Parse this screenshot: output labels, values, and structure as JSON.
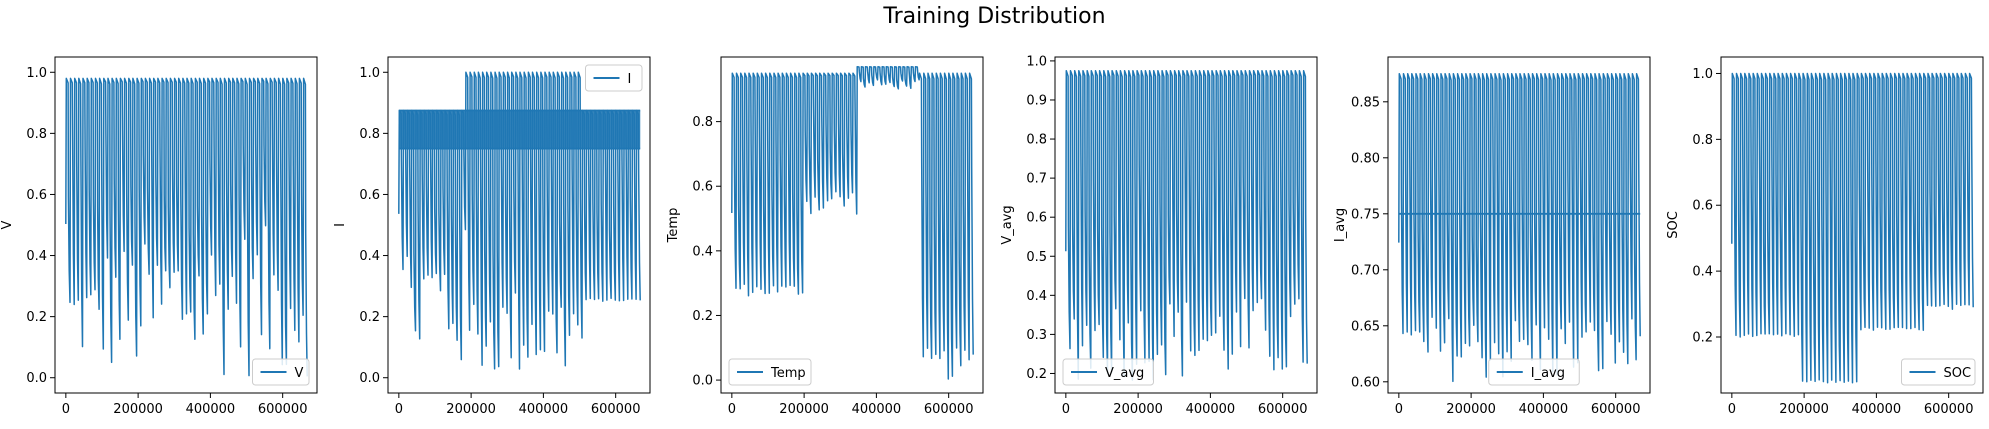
{
  "figure": {
    "title": "Training Distribution"
  },
  "style": {
    "line_color": "#1f77b4",
    "axis_color": "#000000"
  },
  "chart_data": [
    {
      "type": "line",
      "ylabel": "V",
      "legend": "V",
      "legend_loc": "lower-right",
      "xlim": [
        -30000,
        695000
      ],
      "ylim": [
        -0.05,
        1.05
      ],
      "xticks": [
        0,
        200000,
        400000,
        600000
      ],
      "yticks": [
        0.0,
        0.2,
        0.4,
        0.6,
        0.8,
        1.0
      ],
      "ytick_labels": [
        "0.0",
        "0.2",
        "0.4",
        "0.6",
        "0.8",
        "1.0"
      ],
      "series": [
        {
          "cycles": 58,
          "x_range": [
            0,
            668000
          ],
          "segments": [
            {
              "x": [
                0,
                90000
              ],
              "high": 0.98,
              "low": [
                0.05,
                0.35
              ]
            },
            {
              "x": [
                90000,
                260000
              ],
              "high": 0.98,
              "low": [
                0.0,
                0.45
              ]
            },
            {
              "x": [
                260000,
                420000
              ],
              "high": 0.98,
              "low": [
                0.0,
                0.5
              ]
            },
            {
              "x": [
                420000,
                668000
              ],
              "high": 0.98,
              "low": [
                0.0,
                0.5
              ]
            }
          ]
        }
      ]
    },
    {
      "type": "line",
      "ylabel": "I",
      "legend": "I",
      "legend_loc": "upper-right",
      "xlim": [
        -30000,
        695000
      ],
      "ylim": [
        -0.05,
        1.05
      ],
      "xticks": [
        0,
        200000,
        400000,
        600000
      ],
      "yticks": [
        0.0,
        0.2,
        0.4,
        0.6,
        0.8,
        1.0
      ],
      "ytick_labels": [
        "0.0",
        "0.2",
        "0.4",
        "0.6",
        "0.8",
        "1.0"
      ],
      "series": [
        {
          "cycles": 58,
          "x_range": [
            0,
            668000
          ],
          "band": [
            0.75,
            0.875
          ],
          "segments": [
            {
              "x": [
                0,
                180000
              ],
              "high": 0.875,
              "low": [
                0.0,
                0.5
              ]
            },
            {
              "x": [
                180000,
                500000
              ],
              "high": 1.0,
              "low": [
                0.0,
                0.3
              ]
            },
            {
              "x": [
                500000,
                668000
              ],
              "high": 0.875,
              "low": [
                0.25,
                0.26
              ]
            }
          ]
        }
      ]
    },
    {
      "type": "line",
      "ylabel": "Temp",
      "legend": "Temp",
      "legend_loc": "lower-left",
      "xlim": [
        -30000,
        695000
      ],
      "ylim": [
        -0.04,
        1.0
      ],
      "xticks": [
        0,
        200000,
        400000,
        600000
      ],
      "yticks": [
        0.0,
        0.2,
        0.4,
        0.6,
        0.8
      ],
      "ytick_labels": [
        "0.0",
        "0.2",
        "0.4",
        "0.6",
        "0.8"
      ],
      "series": [
        {
          "cycles": 58,
          "x_range": [
            0,
            668000
          ],
          "segments": [
            {
              "x": [
                0,
                190000
              ],
              "high": 0.95,
              "low": [
                0.26,
                0.3
              ]
            },
            {
              "x": [
                190000,
                340000
              ],
              "high": 0.95,
              "low": [
                0.51,
                0.6
              ]
            },
            {
              "x": [
                340000,
                510000
              ],
              "high": 0.97,
              "low": [
                0.9,
                0.93
              ]
            },
            {
              "x": [
                510000,
                668000
              ],
              "high": 0.95,
              "low": [
                0.0,
                0.1
              ]
            }
          ]
        }
      ]
    },
    {
      "type": "line",
      "ylabel": "V_avg",
      "legend": "V_avg",
      "legend_loc": "lower-left",
      "xlim": [
        -30000,
        695000
      ],
      "ylim": [
        0.15,
        1.01
      ],
      "xticks": [
        0,
        200000,
        400000,
        600000
      ],
      "yticks": [
        0.2,
        0.3,
        0.4,
        0.5,
        0.6,
        0.7,
        0.8,
        0.9,
        1.0
      ],
      "ytick_labels": [
        "0.2",
        "0.3",
        "0.4",
        "0.5",
        "0.6",
        "0.7",
        "0.8",
        "0.9",
        "1.0"
      ],
      "series": [
        {
          "cycles": 58,
          "x_range": [
            0,
            668000
          ],
          "segments": [
            {
              "x": [
                0,
                668000
              ],
              "high": 0.975,
              "low": [
                0.18,
                0.4
              ]
            }
          ]
        }
      ]
    },
    {
      "type": "line",
      "ylabel": "I_avg",
      "legend": "I_avg",
      "legend_loc": "lower-center",
      "xlim": [
        -30000,
        695000
      ],
      "ylim": [
        0.59,
        0.89
      ],
      "xticks": [
        0,
        200000,
        400000,
        600000
      ],
      "yticks": [
        0.6,
        0.65,
        0.7,
        0.75,
        0.8,
        0.85
      ],
      "ytick_labels": [
        "0.60",
        "0.65",
        "0.70",
        "0.75",
        "0.80",
        "0.85"
      ],
      "series": [
        {
          "cycles": 58,
          "x_range": [
            0,
            668000
          ],
          "band": [
            0.75,
            0.75
          ],
          "segments": [
            {
              "x": [
                0,
                668000
              ],
              "high": 0.875,
              "low": [
                0.6,
                0.66
              ]
            }
          ]
        }
      ]
    },
    {
      "type": "line",
      "ylabel": "SOC",
      "legend": "SOC",
      "legend_loc": "lower-right",
      "xlim": [
        -30000,
        695000
      ],
      "ylim": [
        0.03,
        1.05
      ],
      "xticks": [
        0,
        200000,
        400000,
        600000
      ],
      "yticks": [
        0.2,
        0.4,
        0.6,
        0.8,
        1.0
      ],
      "ytick_labels": [
        "0.2",
        "0.4",
        "0.6",
        "0.8",
        "1.0"
      ],
      "series": [
        {
          "cycles": 58,
          "x_range": [
            0,
            668000
          ],
          "segments": [
            {
              "x": [
                0,
                180000
              ],
              "high": 1.0,
              "low": [
                0.2,
                0.21
              ]
            },
            {
              "x": [
                180000,
                340000
              ],
              "high": 1.0,
              "low": [
                0.06,
                0.07
              ]
            },
            {
              "x": [
                340000,
                520000
              ],
              "high": 1.0,
              "low": [
                0.22,
                0.23
              ]
            },
            {
              "x": [
                520000,
                668000
              ],
              "high": 1.0,
              "low": [
                0.28,
                0.3
              ]
            }
          ]
        }
      ]
    }
  ],
  "xtick_labels": [
    "0",
    "200000",
    "400000",
    "600000"
  ]
}
